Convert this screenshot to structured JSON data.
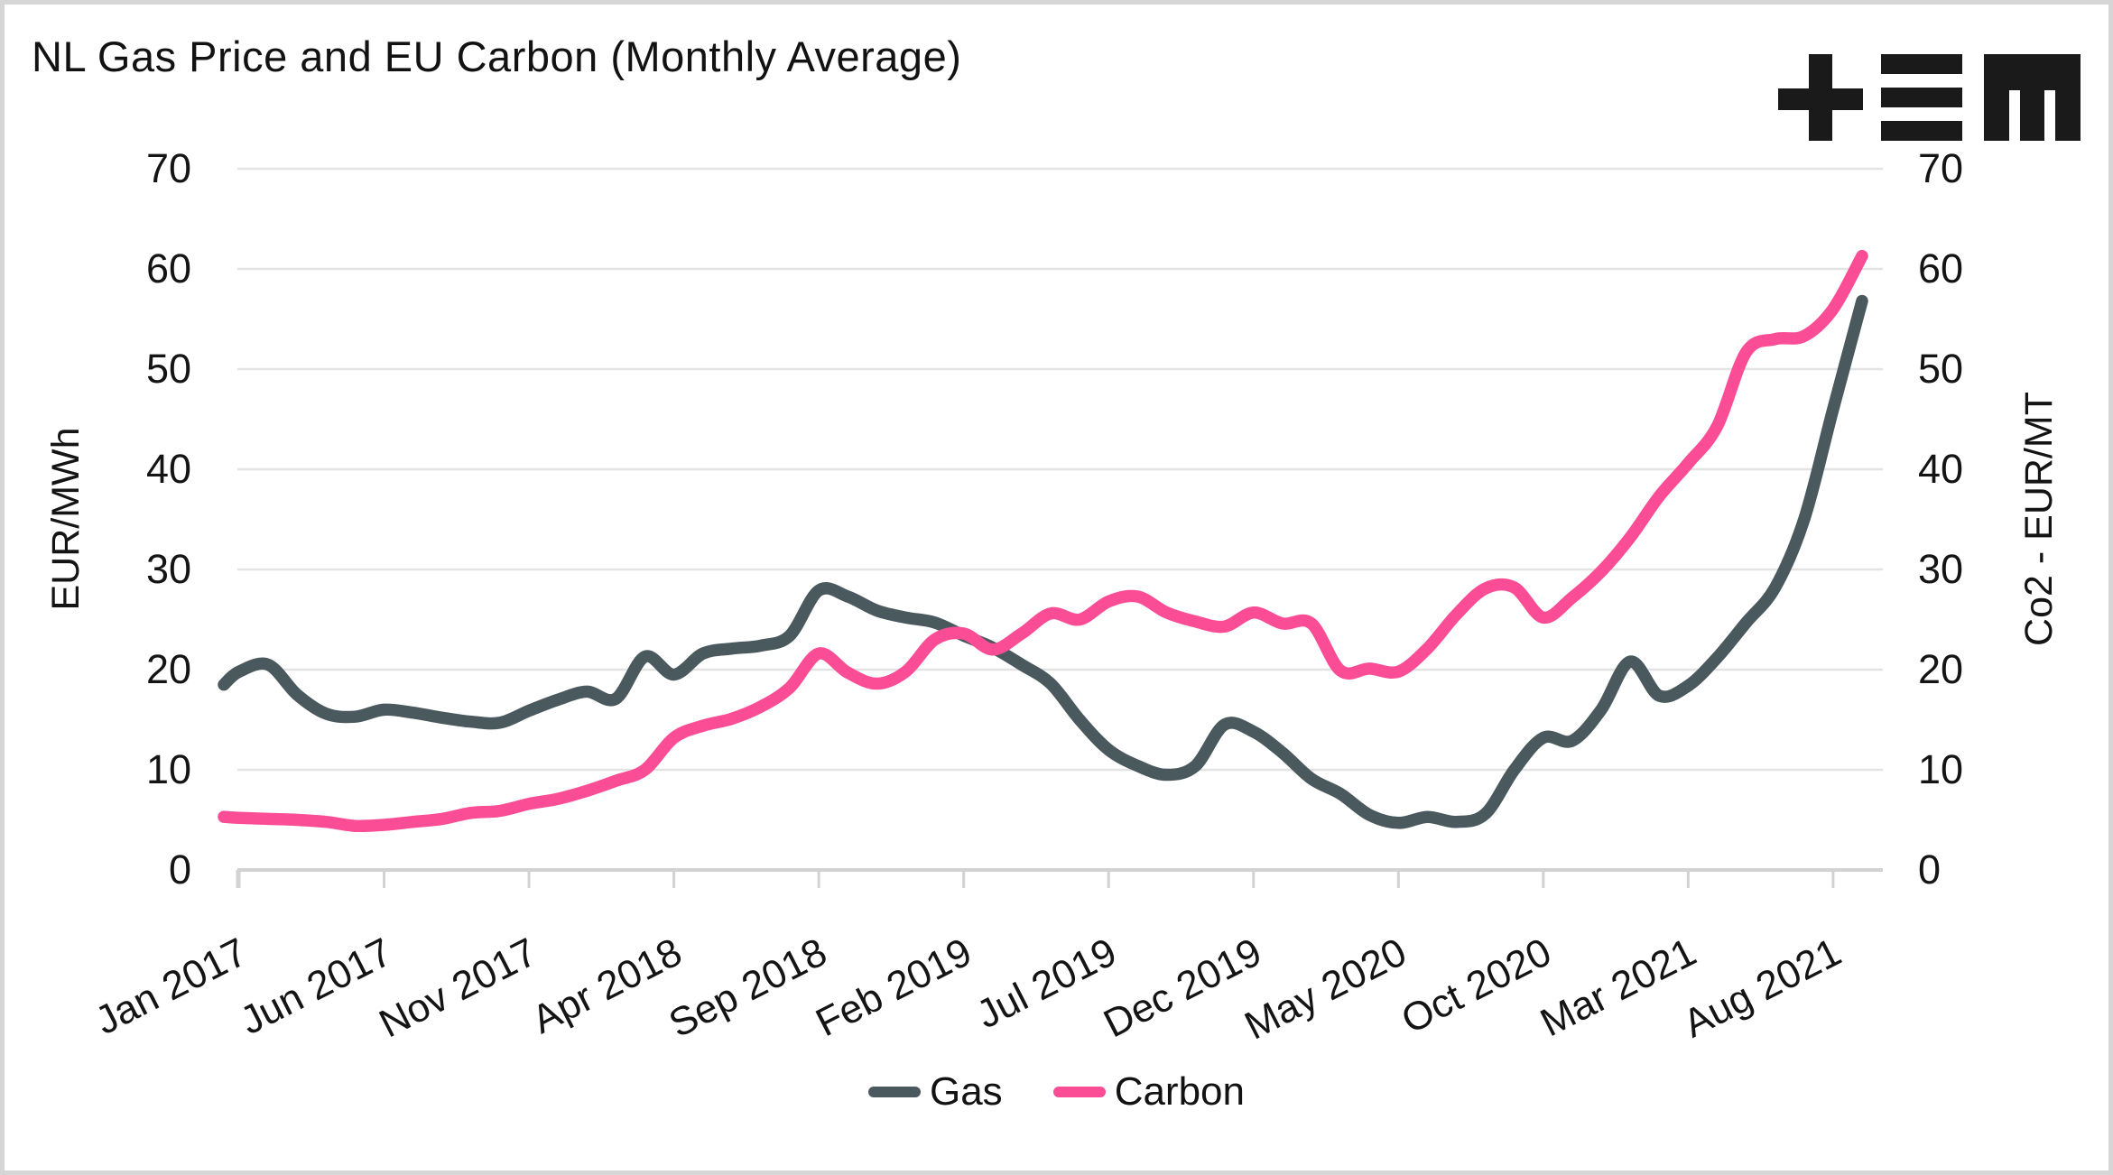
{
  "title": "NL Gas Price and EU Carbon (Monthly Average)",
  "logo_name": "tem-logo",
  "colors": {
    "gas": "#4A595E",
    "carbon": "#FB4D96",
    "gridline": "#E3E3E3",
    "axis": "#D2D2D2",
    "text": "#141414",
    "background": "#FFFFFF",
    "frame_border": "#D6D6D6",
    "logo": "#1A1A1A"
  },
  "legend": [
    {
      "label": "Gas",
      "color": "#4A595E"
    },
    {
      "label": "Carbon",
      "color": "#FB4D96"
    }
  ],
  "chart_data": {
    "type": "line",
    "title": "NL Gas Price and EU Carbon (Monthly Average)",
    "xlabel": "",
    "left_ylabel": "EUR/MWh",
    "right_ylabel": "Co2 - EUR/MT",
    "ylim": [
      0,
      70
    ],
    "y_ticks": [
      0,
      10,
      20,
      30,
      40,
      50,
      60,
      70
    ],
    "grid": "horizontal",
    "legend_position": "bottom-center",
    "x_start": "Jan 2017",
    "x_end": "Sep 2021",
    "n_points": 57,
    "x_tick_every": 5,
    "x_tick_labels": [
      "Jan 2017",
      "Jun 2017",
      "Nov 2017",
      "Apr 2018",
      "Sep 2018",
      "Feb 2019",
      "Jul 2019",
      "Dec 2019",
      "May 2020",
      "Oct 2020",
      "Mar 2021",
      "Aug 2021"
    ],
    "series": [
      {
        "name": "Gas",
        "axis": "left",
        "unit": "EUR/MWh",
        "color": "#4A595E",
        "lead_in": 18.5,
        "values": [
          19.8,
          20.5,
          17.5,
          15.6,
          15.3,
          16.0,
          15.7,
          15.2,
          14.8,
          14.7,
          15.9,
          17.0,
          17.8,
          17.1,
          21.3,
          19.5,
          21.6,
          22.1,
          22.4,
          23.4,
          27.9,
          27.3,
          25.9,
          25.2,
          24.7,
          23.4,
          22.2,
          20.5,
          18.6,
          15.0,
          12.0,
          10.4,
          9.5,
          10.4,
          14.5,
          13.8,
          11.7,
          9.1,
          7.6,
          5.5,
          4.7,
          5.3,
          4.8,
          5.6,
          10.0,
          13.2,
          12.9,
          16.0,
          20.8,
          17.4,
          18.4,
          21.2,
          24.7,
          28.2,
          35.0,
          46.0,
          56.8
        ]
      },
      {
        "name": "Carbon",
        "axis": "right",
        "unit": "EUR/MT",
        "color": "#FB4D96",
        "lead_in": 5.3,
        "values": [
          5.2,
          5.1,
          5.0,
          4.8,
          4.4,
          4.5,
          4.8,
          5.1,
          5.7,
          5.9,
          6.6,
          7.1,
          7.9,
          8.9,
          10.0,
          13.2,
          14.4,
          15.1,
          16.3,
          18.2,
          21.6,
          19.7,
          18.6,
          19.8,
          23.0,
          23.6,
          22.0,
          23.6,
          25.6,
          25.0,
          26.8,
          27.3,
          25.7,
          24.8,
          24.3,
          25.7,
          24.6,
          24.6,
          19.9,
          20.1,
          19.8,
          22.1,
          25.5,
          28.1,
          28.2,
          25.2,
          27.2,
          29.8,
          33.2,
          37.3,
          40.6,
          44.3,
          51.7,
          53.0,
          53.3,
          56.0,
          61.3
        ]
      }
    ]
  }
}
